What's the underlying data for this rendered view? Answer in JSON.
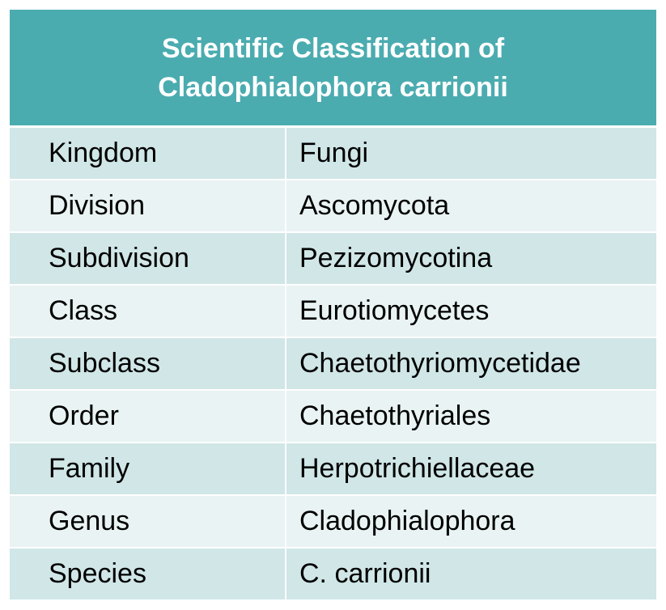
{
  "table": {
    "title": [
      "Scientific Classification of",
      "Cladophialophora carrionii"
    ],
    "rows": [
      [
        "Kingdom",
        "Fungi"
      ],
      [
        "Division",
        "Ascomycota"
      ],
      [
        "Subdivision",
        "Pezizomycotina"
      ],
      [
        "Class",
        "Eurotiomycetes"
      ],
      [
        "Subclass",
        "Chaetothyriomycetidae"
      ],
      [
        "Order",
        "Chaetothyriales"
      ],
      [
        "Family",
        "Herpotrichiellaceae"
      ],
      [
        "Genus",
        "Cladophialophora"
      ],
      [
        "Species",
        "C. carrionii"
      ]
    ]
  }
}
